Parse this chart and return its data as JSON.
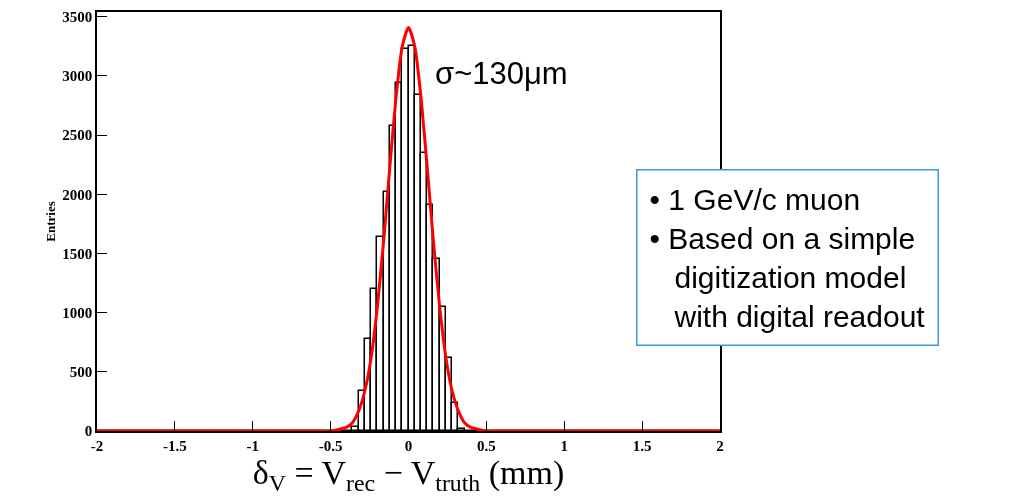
{
  "chart_data": {
    "type": "histogram",
    "xlabel": "δ$_{V}$ = V$_{rec}$ − V$_{truth}$ (mm)",
    "ylabel": "Entries",
    "bins": [
      -2,
      -1.96,
      -1.92,
      -1.88,
      -1.84,
      -1.8,
      -1.76,
      -1.72,
      -1.68,
      -1.64,
      -1.6,
      -1.56,
      -1.52,
      -1.48,
      -1.44,
      -1.4,
      -1.36,
      -1.32,
      -1.28,
      -1.24,
      -1.2,
      -1.16,
      -1.12,
      -1.08,
      -1.04,
      -1,
      -0.96,
      -0.92,
      -0.88,
      -0.84,
      -0.8,
      -0.76,
      -0.72,
      -0.68,
      -0.64,
      -0.6,
      -0.56,
      -0.52,
      -0.48,
      -0.44,
      -0.4,
      -0.36,
      -0.32,
      -0.28,
      -0.24,
      -0.2,
      -0.16,
      -0.12,
      -0.08,
      -0.04,
      0,
      0.04,
      0.08,
      0.12,
      0.16,
      0.2,
      0.24,
      0.28,
      0.32,
      0.36,
      0.4,
      0.44,
      0.48,
      0.52,
      0.56,
      0.6,
      0.64,
      0.68,
      0.72,
      0.76,
      0.8,
      0.84,
      0.88,
      0.92,
      0.96,
      1,
      1.04,
      1.08,
      1.12,
      1.16,
      1.2,
      1.24,
      1.28,
      1.32,
      1.36,
      1.4,
      1.44,
      1.48,
      1.52,
      1.56,
      1.6,
      1.64,
      1.68,
      1.72,
      1.76,
      1.8,
      1.84,
      1.88,
      1.92,
      1.96,
      2
    ],
    "values": [
      0,
      0,
      0,
      0,
      0,
      0,
      0,
      0,
      0,
      0,
      0,
      0,
      0,
      0,
      0,
      0,
      0,
      0,
      0,
      0,
      0,
      0,
      0,
      0,
      0,
      0,
      0,
      0,
      0,
      0,
      0,
      0,
      0,
      0,
      0,
      0,
      0,
      0,
      0,
      0,
      0,
      30,
      340,
      780,
      1200,
      1640,
      2020,
      2580,
      2940,
      3230,
      3250,
      2840,
      2350,
      1910,
      1450,
      1050,
      620,
      240,
      20,
      0,
      0,
      0,
      0,
      0,
      0,
      0,
      0,
      0,
      0,
      0,
      0,
      0,
      0,
      0,
      0,
      0,
      0,
      0,
      0,
      0,
      0,
      0,
      0,
      0,
      0,
      0,
      0,
      0,
      0,
      0,
      0,
      0,
      0,
      0,
      0,
      0,
      0,
      0,
      0,
      0
    ],
    "color": "#000000",
    "series": [
      {
        "type": "line",
        "color": "#ff0000",
        "x": [
          -2,
          -1,
          -0.6,
          -0.5,
          -0.4,
          -0.36,
          -0.32,
          -0.28,
          -0.24,
          -0.2,
          -0.16,
          -0.12,
          -0.08,
          -0.04,
          0,
          0.04,
          0.08,
          0.12,
          0.16,
          0.2,
          0.24,
          0.28,
          0.32,
          0.36,
          0.4,
          0.5,
          0.6,
          1,
          2
        ],
        "values": [
          0,
          0,
          0,
          0,
          30,
          70,
          170,
          340,
          620,
          1050,
          1600,
          2230,
          2820,
          3250,
          3410,
          3250,
          2820,
          2230,
          1600,
          1050,
          620,
          340,
          170,
          70,
          30,
          0,
          0,
          0,
          0
        ]
      }
    ],
    "xlim": [
      -2,
      2
    ],
    "xticks": [
      -2,
      -1.5,
      -1,
      -0.5,
      0,
      0.5,
      1,
      1.5,
      2
    ],
    "ylim": [
      0,
      3540
    ],
    "yticks": [
      0,
      500,
      1000,
      1500,
      2000,
      2500,
      3000,
      3500
    ],
    "annotations": [
      "σ~130μm",
      "• 1 GeV/c muon",
      "• Based on a simple digitization model with digital readout"
    ]
  }
}
